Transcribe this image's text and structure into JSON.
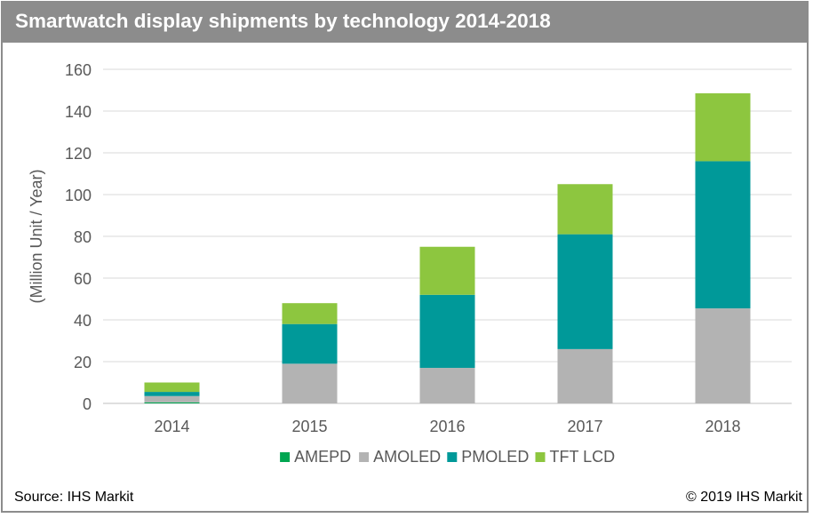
{
  "header": {
    "title": "Smartwatch display shipments by technology 2014-2018"
  },
  "footer": {
    "source": "Source: IHS Markit",
    "copyright": "© 2019 IHS Markit"
  },
  "chart_data": {
    "type": "bar",
    "stacked": true,
    "title": "Smartwatch display shipments by technology 2014-2018",
    "xlabel": "",
    "ylabel": "(Million Unit / Year)",
    "ylim": [
      0,
      160
    ],
    "yticks": [
      0,
      20,
      40,
      60,
      80,
      100,
      120,
      140,
      160
    ],
    "grid": true,
    "legend_position": "bottom",
    "categories": [
      "2014",
      "2015",
      "2016",
      "2017",
      "2018"
    ],
    "series": [
      {
        "name": "AMEPD",
        "color": "#00a651",
        "values": [
          0.5,
          0,
          0,
          0,
          0
        ]
      },
      {
        "name": "AMOLED",
        "color": "#b3b3b3",
        "values": [
          3,
          19,
          17,
          26,
          45.5
        ]
      },
      {
        "name": "PMOLED",
        "color": "#009999",
        "values": [
          2,
          19,
          35,
          55,
          70.5
        ]
      },
      {
        "name": "TFT LCD",
        "color": "#8dc63f",
        "values": [
          4.5,
          10,
          23,
          24,
          32.5
        ]
      }
    ]
  }
}
